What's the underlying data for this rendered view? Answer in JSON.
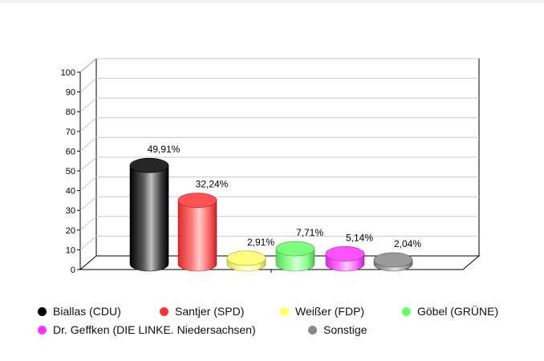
{
  "chart_data": {
    "type": "bar",
    "categories": [
      "Biallas (CDU)",
      "Santjer (SPD)",
      "Weißer (FDP)",
      "Göbel (GRÜNE)",
      "Dr. Geffken (DIE LINKE. Niedersachsen)",
      "Sonstige"
    ],
    "values": [
      49.91,
      32.24,
      2.91,
      7.71,
      5.14,
      2.04
    ],
    "data_labels": [
      "49,91%",
      "32,24%",
      "2,91%",
      "7,71%",
      "5,14%",
      "2,04%"
    ],
    "colors": [
      "#000000",
      "#ff3333",
      "#ffff66",
      "#66ff66",
      "#ff33ff",
      "#888888"
    ],
    "ylim": [
      0,
      100
    ],
    "yticks": [
      "0",
      "10",
      "20",
      "30",
      "40",
      "50",
      "60",
      "70",
      "80",
      "90",
      "100"
    ],
    "grid": true,
    "legend_position": "bottom",
    "style": "3d-cylinder"
  }
}
